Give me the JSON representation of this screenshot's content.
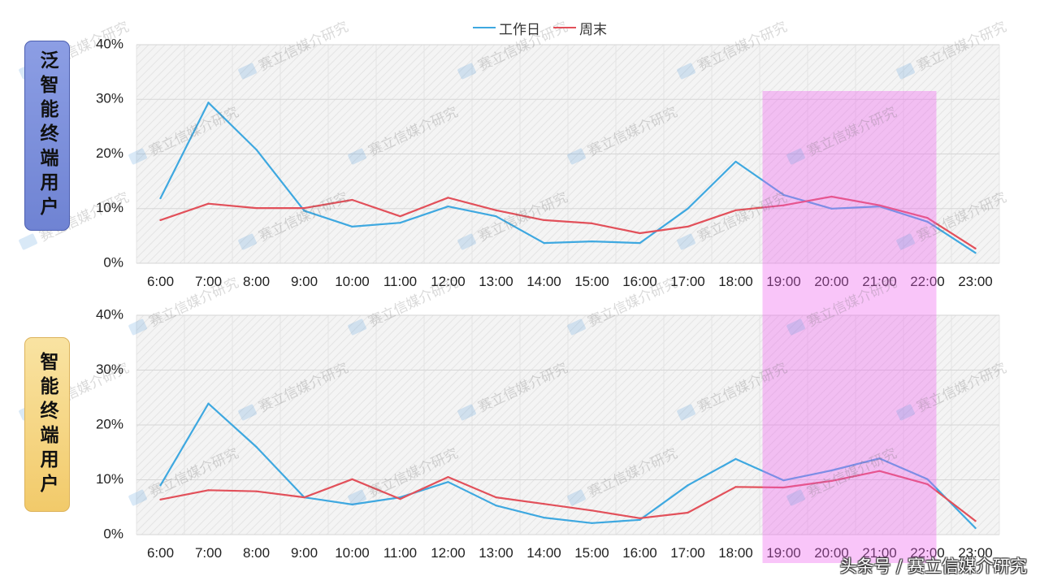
{
  "legend": [
    {
      "name": "工作日",
      "color": "#3ea8e0"
    },
    {
      "name": "周末",
      "color": "#e2505a"
    }
  ],
  "chart_data": [
    {
      "type": "line",
      "title": "泛智能终端用户",
      "legend_position": "top",
      "categories": [
        "6:00",
        "7:00",
        "8:00",
        "9:00",
        "10:00",
        "11:00",
        "12:00",
        "13:00",
        "14:00",
        "15:00",
        "16:00",
        "17:00",
        "18:00",
        "19:00",
        "20:00",
        "21:00",
        "22:00",
        "23:00"
      ],
      "ylim": [
        0,
        40
      ],
      "yticks": [
        0,
        10,
        20,
        30,
        40
      ],
      "ytick_labels": [
        "0%",
        "10%",
        "20%",
        "30%",
        "40%"
      ],
      "grid": true,
      "series": [
        {
          "name": "工作日",
          "values": [
            11.9,
            29.4,
            20.8,
            9.6,
            6.7,
            7.4,
            10.4,
            8.6,
            3.7,
            4.0,
            3.7,
            10.0,
            18.6,
            12.5,
            10.0,
            10.4,
            7.6,
            1.9
          ]
        },
        {
          "name": "周末",
          "values": [
            7.9,
            10.9,
            10.1,
            10.1,
            11.6,
            8.6,
            12.0,
            9.7,
            7.9,
            7.3,
            5.5,
            6.7,
            9.7,
            10.6,
            12.2,
            10.6,
            8.3,
            2.7
          ]
        }
      ]
    },
    {
      "type": "line",
      "title": "智能终端用户",
      "categories": [
        "6:00",
        "7:00",
        "8:00",
        "9:00",
        "10:00",
        "11:00",
        "12:00",
        "13:00",
        "14:00",
        "15:00",
        "16:00",
        "17:00",
        "18:00",
        "19:00",
        "20:00",
        "21:00",
        "22:00",
        "23:00"
      ],
      "ylim": [
        0,
        40
      ],
      "yticks": [
        0,
        10,
        20,
        30,
        40
      ],
      "ytick_labels": [
        "0%",
        "10%",
        "20%",
        "30%",
        "40%"
      ],
      "grid": true,
      "series": [
        {
          "name": "工作日",
          "values": [
            9.0,
            23.9,
            16.0,
            6.8,
            5.5,
            6.8,
            9.6,
            5.3,
            3.1,
            2.1,
            2.7,
            9.0,
            13.8,
            9.9,
            11.7,
            13.9,
            10.1,
            1.2
          ]
        },
        {
          "name": "周末",
          "values": [
            6.4,
            8.1,
            7.9,
            6.8,
            10.1,
            6.5,
            10.5,
            6.8,
            5.6,
            4.4,
            3.0,
            4.0,
            8.7,
            8.6,
            9.8,
            11.6,
            9.2,
            2.5
          ]
        }
      ]
    }
  ],
  "highlight": {
    "from": "19:00",
    "to": "22:00",
    "color": "#ef5fef"
  },
  "watermark": "赛立信媒介研究",
  "source_mark": "头条号 / 赛立信媒介研究"
}
